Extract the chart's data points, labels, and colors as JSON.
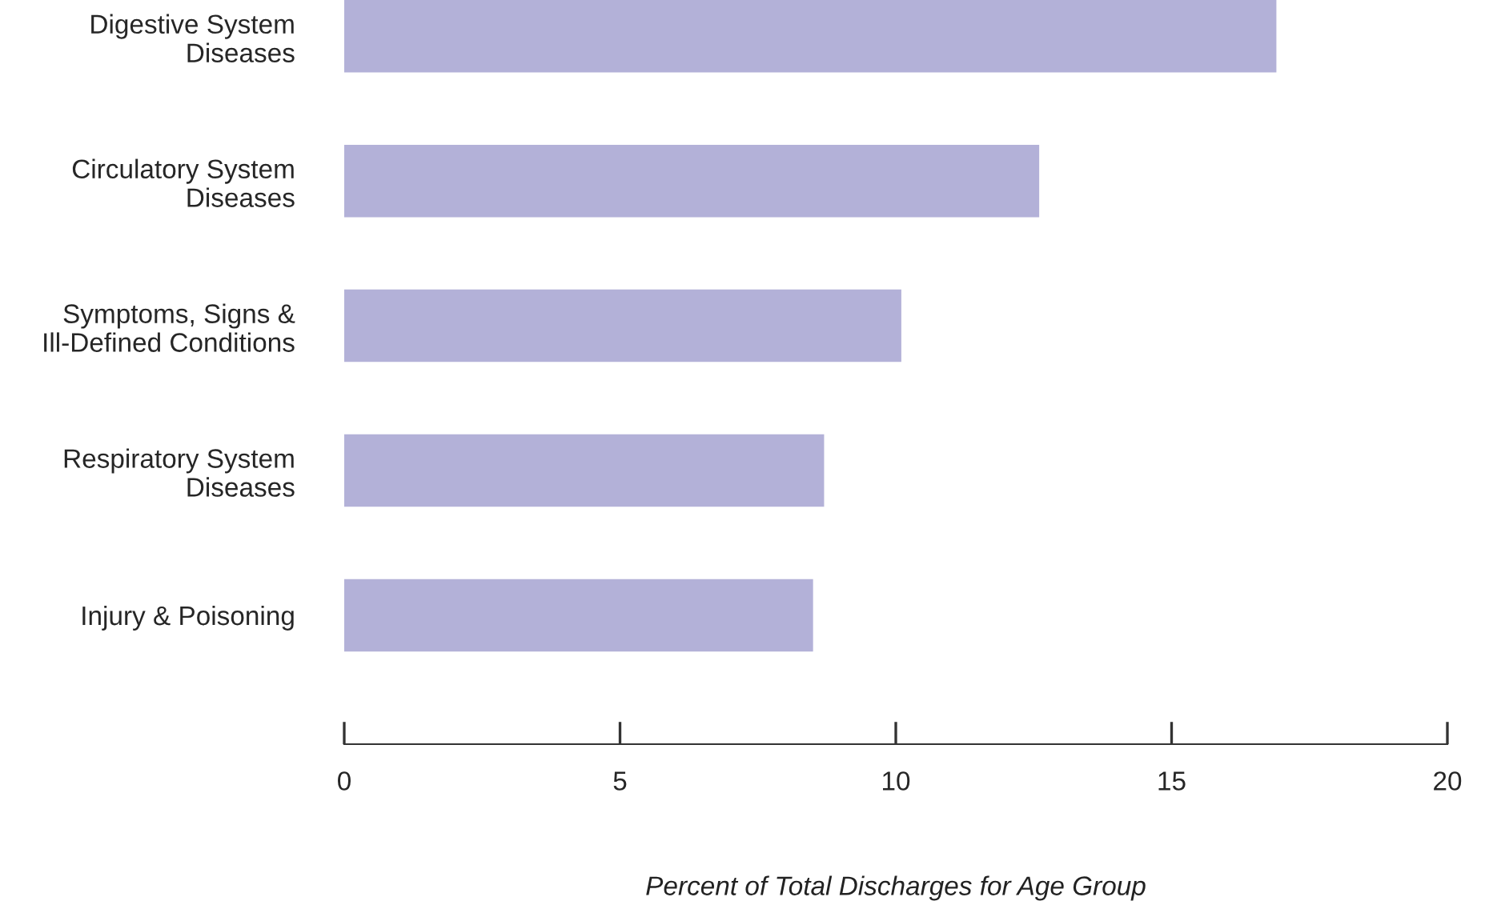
{
  "chart_data": {
    "type": "bar",
    "orientation": "horizontal",
    "categories": [
      "Digestive System\nDiseases",
      "Circulatory System\nDiseases",
      "Symptoms, Signs &\nIll-Defined Conditions",
      "Respiratory System\nDiseases",
      "Injury & Poisoning"
    ],
    "values": [
      16.9,
      12.6,
      10.1,
      8.7,
      8.5
    ],
    "color": "#b3b1d8",
    "xlim": [
      0,
      20
    ],
    "xticks": [
      0,
      5,
      10,
      15,
      20
    ],
    "xlabel": "Percent of Total Discharges for Age Group",
    "grid": false,
    "legend": false
  }
}
